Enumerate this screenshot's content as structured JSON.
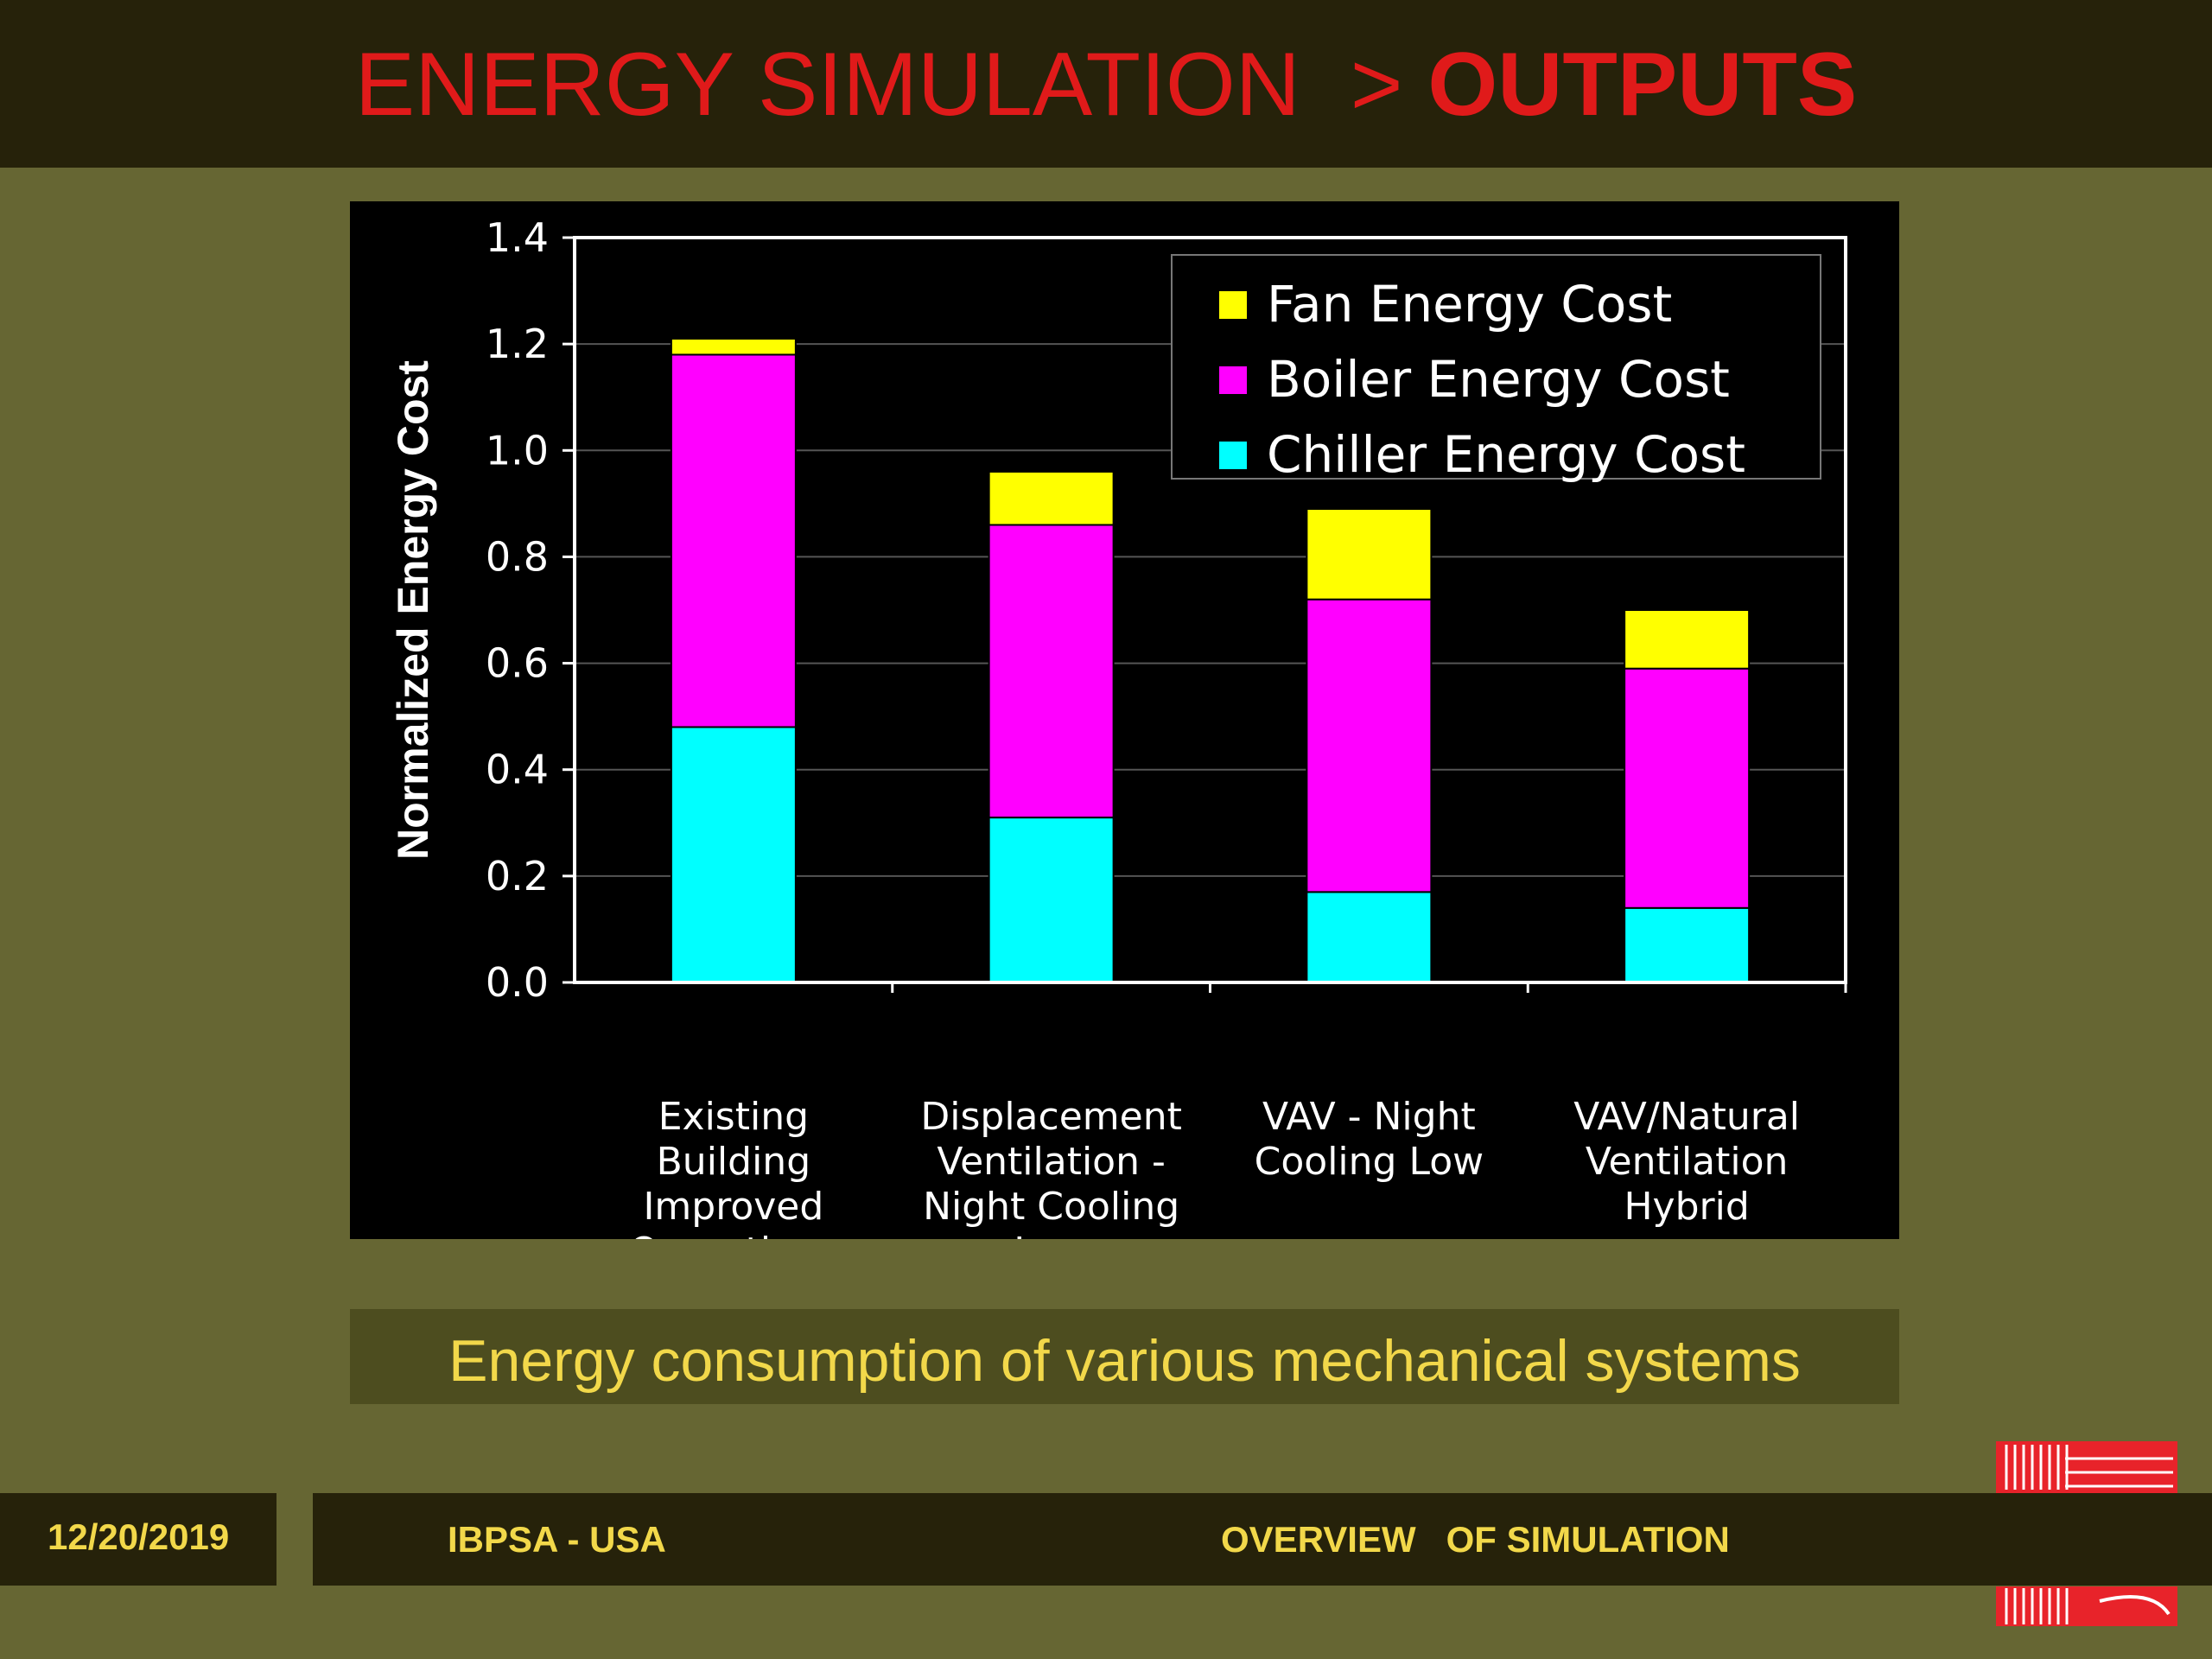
{
  "header": {
    "title_prefix": "ENERGY SIMULATION  > ",
    "title_strong": "OUTPUTS"
  },
  "caption": "Energy consumption of various mechanical systems",
  "footer": {
    "date": "12/20/2019",
    "org": "IBPSA - USA",
    "section": "OVERVIEW   OF SIMULATION"
  },
  "colors": {
    "background": "#666633",
    "bar_dark": "#26220a",
    "title": "#e01a1a",
    "accent_text": "#f2d84a"
  },
  "chart_data": {
    "type": "bar",
    "stacked": true,
    "title": "",
    "xlabel": "",
    "ylabel": "Normalized Energy Cost",
    "ylim": [
      0,
      1.4
    ],
    "yticks": [
      "0.0",
      "0.2",
      "0.4",
      "0.6",
      "0.8",
      "1.0",
      "1.2",
      "1.4"
    ],
    "grid": true,
    "legend_position": "top-right",
    "categories": [
      [
        "Existing",
        "Building",
        "Improved",
        "Operations"
      ],
      [
        "Displacement",
        "Ventilation -",
        "Night Cooling",
        "Low"
      ],
      [
        "VAV - Night",
        "Cooling Low"
      ],
      [
        "VAV/Natural",
        "Ventilation",
        "Hybrid"
      ]
    ],
    "series": [
      {
        "name": "Chiller Energy Cost",
        "color": "#00ffff",
        "values": [
          0.48,
          0.31,
          0.17,
          0.14
        ]
      },
      {
        "name": "Boiler Energy Cost",
        "color": "#ff00ff",
        "values": [
          0.7,
          0.55,
          0.55,
          0.45
        ]
      },
      {
        "name": "Fan Energy Cost",
        "color": "#ffff00",
        "values": [
          0.03,
          0.1,
          0.17,
          0.11
        ]
      }
    ],
    "legend_order": [
      2,
      1,
      0
    ]
  }
}
